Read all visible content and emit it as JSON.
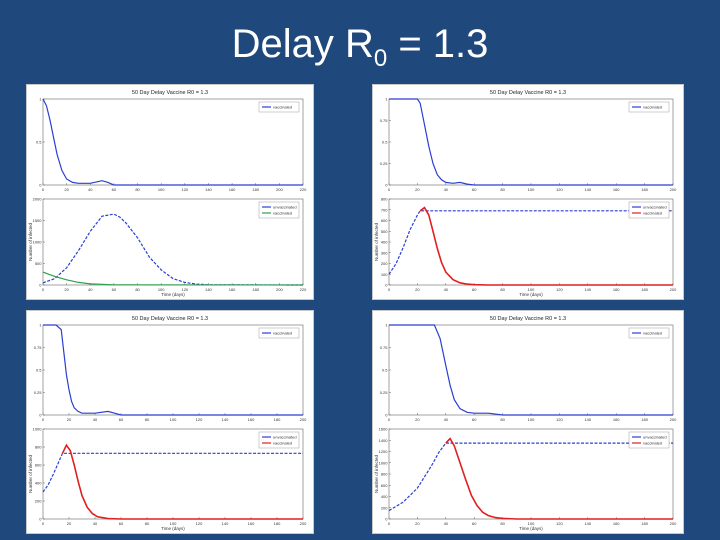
{
  "slide": {
    "title_main": "Delay R",
    "title_sub": "0",
    "title_rest": " = 1.3"
  },
  "colors": {
    "background": "#1f497d",
    "blue": "#2a3fd0",
    "red": "#e02020",
    "green": "#2f9f4f"
  },
  "chart_data": [
    {
      "panel": "top-left",
      "title": "50 Day Delay Vaccine R0 = 1.3",
      "subplots": [
        {
          "type": "line",
          "ylim": [
            0,
            1
          ],
          "xlim": [
            0,
            220
          ],
          "x_ticks": [
            0,
            20,
            40,
            60,
            80,
            100,
            120,
            140,
            160,
            180,
            200,
            220
          ],
          "y_ticks": [
            0,
            0.5,
            1
          ],
          "legend": [
            "vaccinated"
          ],
          "legend_position": "top-right",
          "series": [
            {
              "name": "vaccinated",
              "color": "#2a3fd0",
              "x": [
                0,
                3,
                6,
                9,
                12,
                16,
                20,
                25,
                30,
                40,
                50,
                55,
                60,
                70,
                100,
                220
              ],
              "y": [
                1.0,
                0.92,
                0.75,
                0.55,
                0.35,
                0.17,
                0.07,
                0.03,
                0.02,
                0.02,
                0.05,
                0.03,
                0.0,
                0.0,
                0.0,
                0.0
              ]
            }
          ]
        },
        {
          "type": "line",
          "ylim": [
            0,
            2000
          ],
          "xlim": [
            0,
            220
          ],
          "x_ticks": [
            0,
            20,
            40,
            60,
            80,
            100,
            120,
            140,
            160,
            180,
            200,
            220
          ],
          "y_ticks": [
            0,
            500,
            1000,
            1500,
            2000
          ],
          "xlabel": "Time (days)",
          "ylabel": "Number of infected",
          "legend": [
            "unvaccinated",
            "vaccinated"
          ],
          "legend_position": "top-right",
          "series": [
            {
              "name": "unvaccinated",
              "color": "#2a3fd0",
              "x": [
                0,
                10,
                20,
                30,
                40,
                50,
                60,
                65,
                70,
                80,
                90,
                100,
                110,
                120,
                130,
                140,
                220
              ],
              "y": [
                50,
                150,
                400,
                800,
                1250,
                1600,
                1650,
                1580,
                1450,
                1100,
                650,
                350,
                150,
                60,
                20,
                5,
                0
              ]
            },
            {
              "name": "vaccinated",
              "color": "#2f9f4f",
              "x": [
                0,
                5,
                10,
                20,
                30,
                40,
                60,
                220
              ],
              "y": [
                300,
                250,
                200,
                120,
                60,
                25,
                5,
                0
              ]
            }
          ]
        }
      ]
    },
    {
      "panel": "top-right",
      "title": "50 Day Delay Vaccine R0 = 1.3",
      "subplots": [
        {
          "type": "line",
          "ylim": [
            0,
            1
          ],
          "xlim": [
            0,
            200
          ],
          "x_ticks": [
            0,
            20,
            40,
            60,
            80,
            100,
            120,
            140,
            160,
            180,
            200
          ],
          "y_ticks": [
            0,
            0.25,
            0.5,
            0.75,
            1
          ],
          "legend": [
            "vaccinated"
          ],
          "legend_position": "top-right",
          "series": [
            {
              "name": "vaccinated",
              "color": "#2a3fd0",
              "x": [
                0,
                10,
                20,
                22,
                25,
                28,
                31,
                34,
                37,
                40,
                45,
                50,
                55,
                60,
                65,
                200
              ],
              "y": [
                1.0,
                1.0,
                1.0,
                0.95,
                0.7,
                0.45,
                0.25,
                0.12,
                0.06,
                0.03,
                0.02,
                0.03,
                0.01,
                0.0,
                0.0,
                0.0
              ]
            }
          ]
        },
        {
          "type": "line",
          "ylim": [
            0,
            800
          ],
          "xlim": [
            0,
            200
          ],
          "x_ticks": [
            0,
            20,
            40,
            60,
            80,
            100,
            120,
            140,
            160,
            180,
            200
          ],
          "y_ticks": [
            0,
            100,
            200,
            300,
            400,
            500,
            600,
            700,
            800
          ],
          "xlabel": "Time (days)",
          "ylabel": "Number of infected",
          "legend": [
            "unvaccinated",
            "vaccinated"
          ],
          "legend_position": "top-right",
          "series": [
            {
              "name": "unvaccinated",
              "color": "#2a3fd0",
              "x": [
                0,
                5,
                10,
                15,
                20,
                22,
                200
              ],
              "y": [
                100,
                200,
                350,
                520,
                650,
                690,
                690
              ]
            },
            {
              "name": "vaccinated",
              "color": "#e02020",
              "x": [
                22,
                25,
                28,
                31,
                34,
                37,
                40,
                45,
                50,
                55,
                60,
                70,
                200
              ],
              "y": [
                690,
                720,
                650,
                500,
                340,
                210,
                120,
                50,
                20,
                8,
                3,
                0,
                0
              ]
            }
          ]
        }
      ]
    },
    {
      "panel": "bottom-left",
      "title": "50 Day Delay Vaccine R0 = 1.3",
      "subplots": [
        {
          "type": "line",
          "ylim": [
            0,
            1
          ],
          "xlim": [
            0,
            200
          ],
          "x_ticks": [
            0,
            20,
            40,
            60,
            80,
            100,
            120,
            140,
            160,
            180,
            200
          ],
          "y_ticks": [
            0,
            0.25,
            0.5,
            0.75,
            1
          ],
          "legend": [
            "vaccinated"
          ],
          "legend_position": "top-right",
          "series": [
            {
              "name": "vaccinated",
              "color": "#2a3fd0",
              "x": [
                0,
                10,
                14,
                16,
                18,
                20,
                22,
                24,
                27,
                30,
                40,
                50,
                55,
                60,
                200
              ],
              "y": [
                1.0,
                1.0,
                0.95,
                0.7,
                0.45,
                0.28,
                0.15,
                0.08,
                0.04,
                0.02,
                0.02,
                0.04,
                0.02,
                0.0,
                0.0
              ]
            }
          ]
        },
        {
          "type": "line",
          "ylim": [
            0,
            1000
          ],
          "xlim": [
            0,
            200
          ],
          "x_ticks": [
            0,
            20,
            40,
            60,
            80,
            100,
            120,
            140,
            160,
            180,
            200
          ],
          "y_ticks": [
            0,
            200,
            400,
            600,
            800,
            1000
          ],
          "xlabel": "Time (days)",
          "ylabel": "Number of infected",
          "legend": [
            "unvaccinated",
            "vaccinated"
          ],
          "legend_position": "top-right",
          "series": [
            {
              "name": "unvaccinated",
              "color": "#2a3fd0",
              "x": [
                0,
                4,
                8,
                12,
                15,
                200
              ],
              "y": [
                300,
                380,
                500,
                630,
                730,
                730
              ]
            },
            {
              "name": "vaccinated",
              "color": "#e02020",
              "x": [
                15,
                18,
                21,
                24,
                27,
                30,
                34,
                38,
                42,
                50,
                60,
                200
              ],
              "y": [
                730,
                820,
                760,
                600,
                420,
                260,
                130,
                60,
                25,
                5,
                0,
                0
              ]
            }
          ]
        }
      ]
    },
    {
      "panel": "bottom-right",
      "title": "50 Day Delay Vaccine R0 = 1.3",
      "subplots": [
        {
          "type": "line",
          "ylim": [
            0,
            1
          ],
          "xlim": [
            0,
            200
          ],
          "x_ticks": [
            0,
            20,
            40,
            60,
            80,
            100,
            120,
            140,
            160,
            180,
            200
          ],
          "y_ticks": [
            0,
            0.25,
            0.5,
            0.75,
            1
          ],
          "legend": [
            "vaccinated"
          ],
          "legend_position": "top-right",
          "series": [
            {
              "name": "vaccinated",
              "color": "#2a3fd0",
              "x": [
                0,
                20,
                32,
                36,
                40,
                43,
                46,
                50,
                55,
                60,
                70,
                80,
                200
              ],
              "y": [
                1.0,
                1.0,
                1.0,
                0.85,
                0.55,
                0.33,
                0.17,
                0.07,
                0.03,
                0.02,
                0.02,
                0.0,
                0.0
              ]
            }
          ]
        },
        {
          "type": "line",
          "ylim": [
            0,
            1600
          ],
          "xlim": [
            0,
            200
          ],
          "x_ticks": [
            0,
            20,
            40,
            60,
            80,
            100,
            120,
            140,
            160,
            180,
            200
          ],
          "y_ticks": [
            0,
            200,
            400,
            600,
            800,
            1000,
            1200,
            1400,
            1600
          ],
          "xlabel": "Time (days)",
          "ylabel": "Number of infected",
          "legend": [
            "unvaccinated",
            "vaccinated"
          ],
          "legend_position": "top-right",
          "series": [
            {
              "name": "unvaccinated",
              "color": "#2a3fd0",
              "x": [
                0,
                10,
                20,
                30,
                35,
                40,
                200
              ],
              "y": [
                150,
                300,
                550,
                950,
                1180,
                1350,
                1350
              ]
            },
            {
              "name": "vaccinated",
              "color": "#e02020",
              "x": [
                40,
                43,
                46,
                50,
                54,
                58,
                62,
                66,
                70,
                75,
                80,
                90,
                200
              ],
              "y": [
                1350,
                1430,
                1300,
                1000,
                700,
                420,
                240,
                120,
                60,
                25,
                10,
                0,
                0
              ]
            }
          ]
        }
      ]
    }
  ]
}
